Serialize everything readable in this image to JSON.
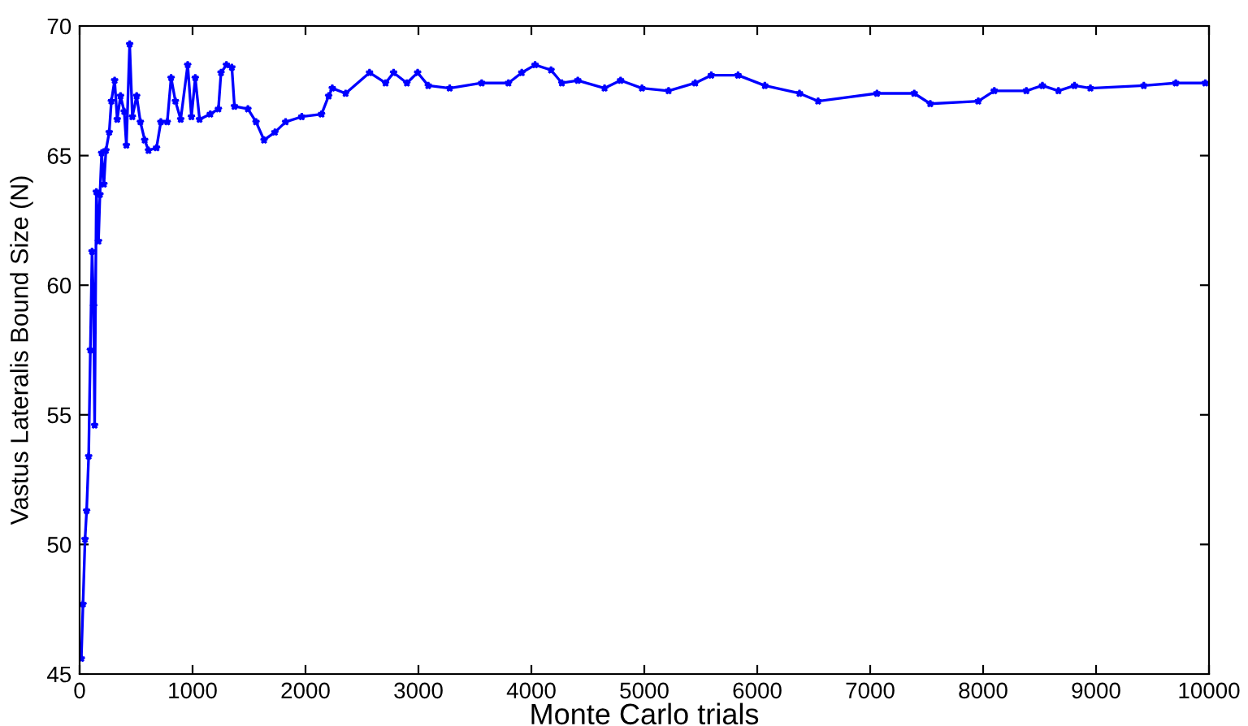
{
  "chart_data": {
    "type": "line",
    "xlabel": "Monte Carlo trials",
    "ylabel": "Vastus Lateralis Bound Size (N)",
    "xlim": [
      0,
      10000
    ],
    "ylim": [
      45,
      70
    ],
    "xticks": [
      0,
      1000,
      2000,
      3000,
      4000,
      5000,
      6000,
      7000,
      8000,
      9000,
      10000
    ],
    "yticks": [
      45,
      50,
      55,
      60,
      65,
      70
    ],
    "grid": false,
    "legend": false,
    "marker": "star",
    "line_style": "solid",
    "series": [
      {
        "color": "#0000ff",
        "x": [
          15,
          30,
          48,
          62,
          80,
          95,
          110,
          124,
          133,
          148,
          167,
          180,
          195,
          215,
          233,
          262,
          281,
          310,
          333,
          362,
          395,
          414,
          443,
          467,
          505,
          538,
          576,
          610,
          681,
          719,
          776,
          810,
          848,
          895,
          957,
          990,
          1024,
          1062,
          1157,
          1229,
          1252,
          1300,
          1348,
          1371,
          1490,
          1562,
          1633,
          1729,
          1824,
          1967,
          2142,
          2205,
          2237,
          2355,
          2567,
          2709,
          2780,
          2898,
          2993,
          3087,
          3277,
          3560,
          3797,
          3915,
          4033,
          4174,
          4270,
          4411,
          4648,
          4790,
          4979,
          5215,
          5451,
          5593,
          5830,
          6067,
          6374,
          6539,
          7060,
          7390,
          7532,
          7957,
          8099,
          8383,
          8525,
          8667,
          8809,
          8950,
          9423,
          9706,
          9967
        ],
        "values": [
          45.6,
          47.7,
          50.2,
          51.3,
          53.4,
          57.5,
          61.3,
          59.2,
          54.6,
          63.6,
          61.7,
          63.5,
          65.1,
          63.9,
          65.2,
          65.9,
          67.1,
          67.9,
          66.4,
          67.3,
          66.7,
          65.4,
          69.3,
          66.5,
          67.3,
          66.3,
          65.6,
          65.2,
          65.3,
          66.3,
          66.3,
          68.0,
          67.1,
          66.4,
          68.5,
          66.5,
          68.0,
          66.4,
          66.6,
          66.8,
          68.2,
          68.5,
          68.4,
          66.9,
          66.8,
          66.3,
          65.6,
          65.9,
          66.3,
          66.5,
          66.6,
          67.3,
          67.6,
          67.4,
          68.2,
          67.8,
          68.2,
          67.8,
          68.2,
          67.7,
          67.6,
          67.8,
          67.8,
          68.2,
          68.5,
          68.3,
          67.8,
          67.9,
          67.6,
          67.9,
          67.6,
          67.5,
          67.8,
          68.1,
          68.1,
          67.7,
          67.4,
          67.1,
          67.4,
          67.4,
          67.0,
          67.1,
          67.5,
          67.5,
          67.7,
          67.5,
          67.7,
          67.6,
          67.7,
          67.8,
          67.8
        ]
      }
    ]
  }
}
